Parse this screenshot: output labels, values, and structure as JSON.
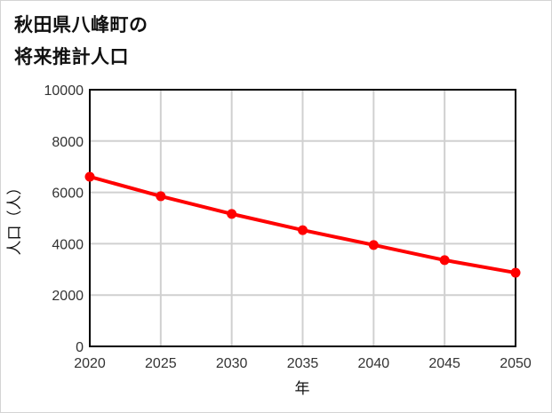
{
  "title": {
    "line1": "秋田県八峰町の",
    "line2": "将来推計人口"
  },
  "axes": {
    "xlabel": "年",
    "ylabel": "人口（人）"
  },
  "colors": {
    "series": "#ff0000",
    "grid": "#d0d0d0",
    "axis": "#000000"
  },
  "chart_data": {
    "type": "line",
    "title": "秋田県八峰町の将来推計人口",
    "xlabel": "年",
    "ylabel": "人口（人）",
    "x": [
      2020,
      2025,
      2030,
      2035,
      2040,
      2045,
      2050
    ],
    "series": [
      {
        "name": "将来推計人口",
        "values": [
          6610,
          5850,
          5160,
          4530,
          3950,
          3360,
          2870
        ]
      }
    ],
    "xticks": [
      "2020",
      "2025",
      "2030",
      "2035",
      "2040",
      "2045",
      "2050"
    ],
    "yticks": [
      "0",
      "2000",
      "4000",
      "6000",
      "8000",
      "10000"
    ],
    "ylim": [
      0,
      10000
    ],
    "xlim": [
      2020,
      2050
    ],
    "grid": true,
    "legend": null
  }
}
